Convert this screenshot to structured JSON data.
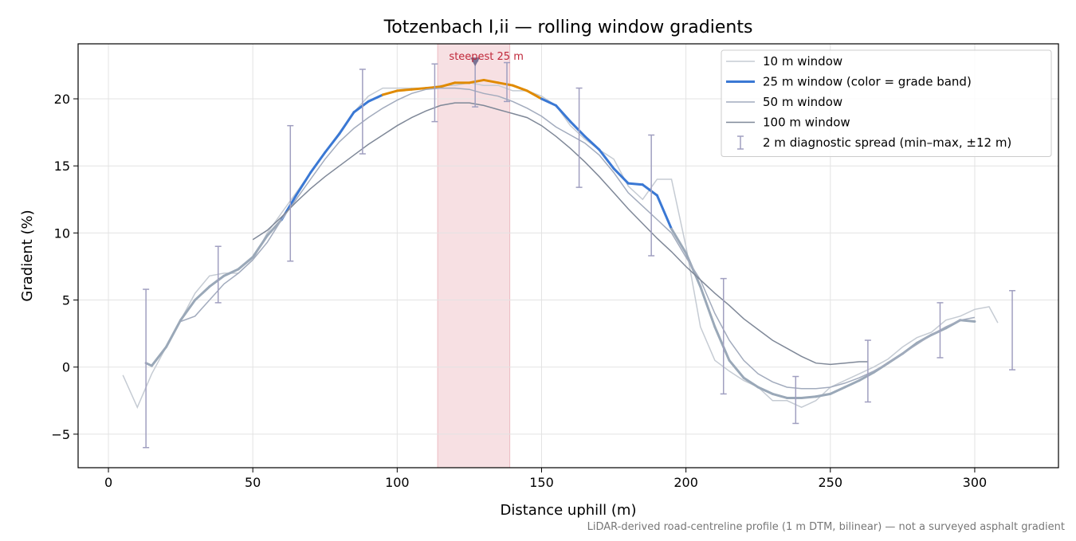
{
  "chart_data": {
    "type": "line",
    "title": "Totzenbach I,ii — rolling window gradients",
    "x_label": "Distance uphill (m)",
    "y_label": "Gradient (%)",
    "footnote": "LiDAR-derived road-centreline profile (1 m DTM, bilinear) — not a surveyed asphalt gradient",
    "xlim": [
      -10.5,
      329
    ],
    "ylim": [
      -7.5,
      24.1
    ],
    "xticks": [
      0,
      50,
      100,
      150,
      200,
      250,
      300
    ],
    "yticks": [
      {
        "value": -5,
        "label": "−5"
      },
      0,
      5,
      10,
      15,
      20
    ],
    "grid": true,
    "legend": "upper right",
    "series": [
      {
        "name": "10 m window",
        "color": "#c5cbd3",
        "width": 1.5,
        "x": [
          5,
          10,
          15,
          20,
          25,
          30,
          35,
          40,
          45,
          50,
          55,
          60,
          65,
          70,
          75,
          80,
          85,
          90,
          95,
          100,
          105,
          110,
          115,
          120,
          125,
          130,
          135,
          140,
          145,
          150,
          155,
          160,
          165,
          170,
          175,
          180,
          185,
          190,
          195,
          200,
          205,
          210,
          215,
          220,
          225,
          230,
          235,
          240,
          245,
          250,
          255,
          260,
          265,
          270,
          275,
          280,
          285,
          290,
          295,
          300,
          305,
          308
        ],
        "values": [
          -0.6,
          -3,
          -0.5,
          1.5,
          3.5,
          5.5,
          6.8,
          7,
          7,
          8,
          10,
          11.5,
          13,
          14.5,
          16,
          17.5,
          19,
          20.2,
          20.8,
          20.8,
          20.8,
          20.8,
          21,
          21,
          21.2,
          21,
          21,
          20.6,
          20.6,
          20.2,
          19.5,
          18,
          17,
          16.2,
          15.5,
          13.5,
          12.5,
          14,
          14,
          9,
          3,
          0.5,
          -0.3,
          -1,
          -1.5,
          -2.5,
          -2.5,
          -3,
          -2.5,
          -1.5,
          -1,
          -0.5,
          0,
          0.6,
          1.5,
          2.2,
          2.6,
          3.5,
          3.8,
          4.3,
          4.5,
          3.3
        ]
      },
      {
        "name": "25 m window (color = grade band)",
        "color": "#3a78d4",
        "width": 3,
        "x": [
          13,
          15,
          20,
          25,
          30,
          35,
          40,
          45,
          50,
          55,
          60,
          65,
          70,
          75,
          80,
          85,
          90,
          95,
          100,
          105,
          110,
          115,
          120,
          125,
          130,
          135,
          140,
          145,
          150,
          155,
          160,
          165,
          170,
          175,
          180,
          185,
          190,
          195,
          200,
          205,
          210,
          215,
          220,
          225,
          230,
          235,
          240,
          245,
          250,
          255,
          260,
          265,
          270,
          275,
          280,
          285,
          290,
          295,
          300
        ],
        "values": [
          0.3,
          0.1,
          1.5,
          3.5,
          5,
          6,
          6.8,
          7.3,
          8.2,
          9.8,
          11,
          12.8,
          14.5,
          16,
          17.4,
          19,
          19.8,
          20.3,
          20.6,
          20.7,
          20.8,
          20.9,
          21.2,
          21.2,
          21.4,
          21.2,
          21,
          20.6,
          20,
          19.5,
          18.3,
          17.2,
          16.2,
          14.8,
          13.7,
          13.6,
          12.8,
          10.3,
          8.5,
          6,
          3,
          0.5,
          -0.8,
          -1.5,
          -2,
          -2.3,
          -2.3,
          -2.2,
          -2,
          -1.5,
          -1,
          -0.4,
          0.3,
          1,
          1.8,
          2.4,
          2.9,
          3.5,
          3.4
        ],
        "colors": [
          "#9aa8b8",
          "#9aa8b8",
          "#9aa8b8",
          "#9aa8b8",
          "#9aa8b8",
          "#9aa8b8",
          "#9aa8b8",
          "#9aa8b8",
          "#9aa8b8",
          "#9aa8b8",
          "#3a78d4",
          "#3a78d4",
          "#3a78d4",
          "#3a78d4",
          "#3a78d4",
          "#3a78d4",
          "#3a78d4",
          "#e08a00",
          "#e08a00",
          "#e08a00",
          "#e08a00",
          "#e08a00",
          "#e08a00",
          "#e08a00",
          "#e08a00",
          "#e08a00",
          "#e08a00",
          "#e08a00",
          "#3a78d4",
          "#3a78d4",
          "#3a78d4",
          "#3a78d4",
          "#3a78d4",
          "#3a78d4",
          "#3a78d4",
          "#3a78d4",
          "#3a78d4",
          "#9aa8b8",
          "#9aa8b8",
          "#9aa8b8",
          "#9aa8b8",
          "#9aa8b8",
          "#9aa8b8",
          "#9aa8b8",
          "#9aa8b8",
          "#9aa8b8",
          "#9aa8b8",
          "#9aa8b8",
          "#9aa8b8",
          "#9aa8b8",
          "#9aa8b8",
          "#9aa8b8",
          "#9aa8b8",
          "#9aa8b8",
          "#9aa8b8",
          "#9aa8b8",
          "#9aa8b8",
          "#9aa8b8",
          "#9aa8b8"
        ]
      },
      {
        "name": "50 m window",
        "color": "#a2abbd",
        "width": 1.5,
        "x": [
          25,
          30,
          35,
          40,
          45,
          50,
          55,
          60,
          65,
          70,
          75,
          80,
          85,
          90,
          95,
          100,
          105,
          110,
          115,
          120,
          125,
          130,
          135,
          140,
          145,
          150,
          155,
          160,
          165,
          170,
          175,
          180,
          185,
          190,
          195,
          200,
          205,
          210,
          215,
          220,
          225,
          230,
          235,
          240,
          245,
          250,
          255,
          260,
          265,
          270,
          275,
          280,
          285,
          290,
          295,
          300
        ],
        "values": [
          3.4,
          3.8,
          5,
          6.2,
          7,
          8,
          9.3,
          11,
          12.5,
          14,
          15.5,
          16.8,
          17.8,
          18.6,
          19.3,
          19.9,
          20.4,
          20.7,
          20.8,
          20.8,
          20.7,
          20.4,
          20.2,
          19.8,
          19.3,
          18.7,
          17.9,
          17.3,
          16.7,
          15.8,
          14.5,
          13,
          12,
          11,
          10,
          8.2,
          6.5,
          4,
          2,
          0.5,
          -0.5,
          -1.1,
          -1.5,
          -1.6,
          -1.6,
          -1.5,
          -1.2,
          -0.8,
          -0.3,
          0.3,
          1,
          1.7,
          2.4,
          3,
          3.5,
          3.7
        ]
      },
      {
        "name": "100 m window",
        "color": "#7f8898",
        "width": 1.5,
        "x": [
          50,
          55,
          60,
          65,
          70,
          75,
          80,
          85,
          90,
          95,
          100,
          105,
          110,
          115,
          120,
          125,
          130,
          135,
          140,
          145,
          150,
          155,
          160,
          165,
          170,
          175,
          180,
          185,
          190,
          195,
          200,
          205,
          210,
          215,
          220,
          225,
          230,
          235,
          240,
          245,
          250,
          255,
          260,
          263
        ],
        "values": [
          9.5,
          10.2,
          11.2,
          12.3,
          13.3,
          14.2,
          15,
          15.8,
          16.6,
          17.3,
          18,
          18.6,
          19.1,
          19.5,
          19.7,
          19.7,
          19.5,
          19.2,
          18.9,
          18.6,
          18,
          17.2,
          16.3,
          15.3,
          14.2,
          13,
          11.8,
          10.7,
          9.6,
          8.6,
          7.5,
          6.5,
          5.5,
          4.6,
          3.6,
          2.8,
          2,
          1.4,
          0.8,
          0.3,
          0.2,
          0.3,
          0.4,
          0.4
        ]
      }
    ],
    "errorbars": {
      "name": "2 m diagnostic spread (min–max, ±12 m)",
      "color": "#a09fc0",
      "x": [
        13,
        38,
        63,
        88,
        113,
        127,
        138,
        163,
        188,
        213,
        238,
        263,
        288,
        313
      ],
      "low": [
        -6,
        4.8,
        7.9,
        15.9,
        18.3,
        19.4,
        19.8,
        13.4,
        8.3,
        -2,
        -4.2,
        -2.6,
        0.7,
        -0.2
      ],
      "high": [
        5.8,
        9,
        18,
        22.2,
        22.6,
        22.8,
        22.7,
        20.8,
        17.3,
        6.6,
        -0.7,
        2,
        4.8,
        5.7
      ]
    },
    "highlight": {
      "label": "steepest 25 m",
      "x": [
        114,
        139
      ],
      "color": "#d9707f",
      "marker": [
        127,
        22.6
      ]
    }
  }
}
